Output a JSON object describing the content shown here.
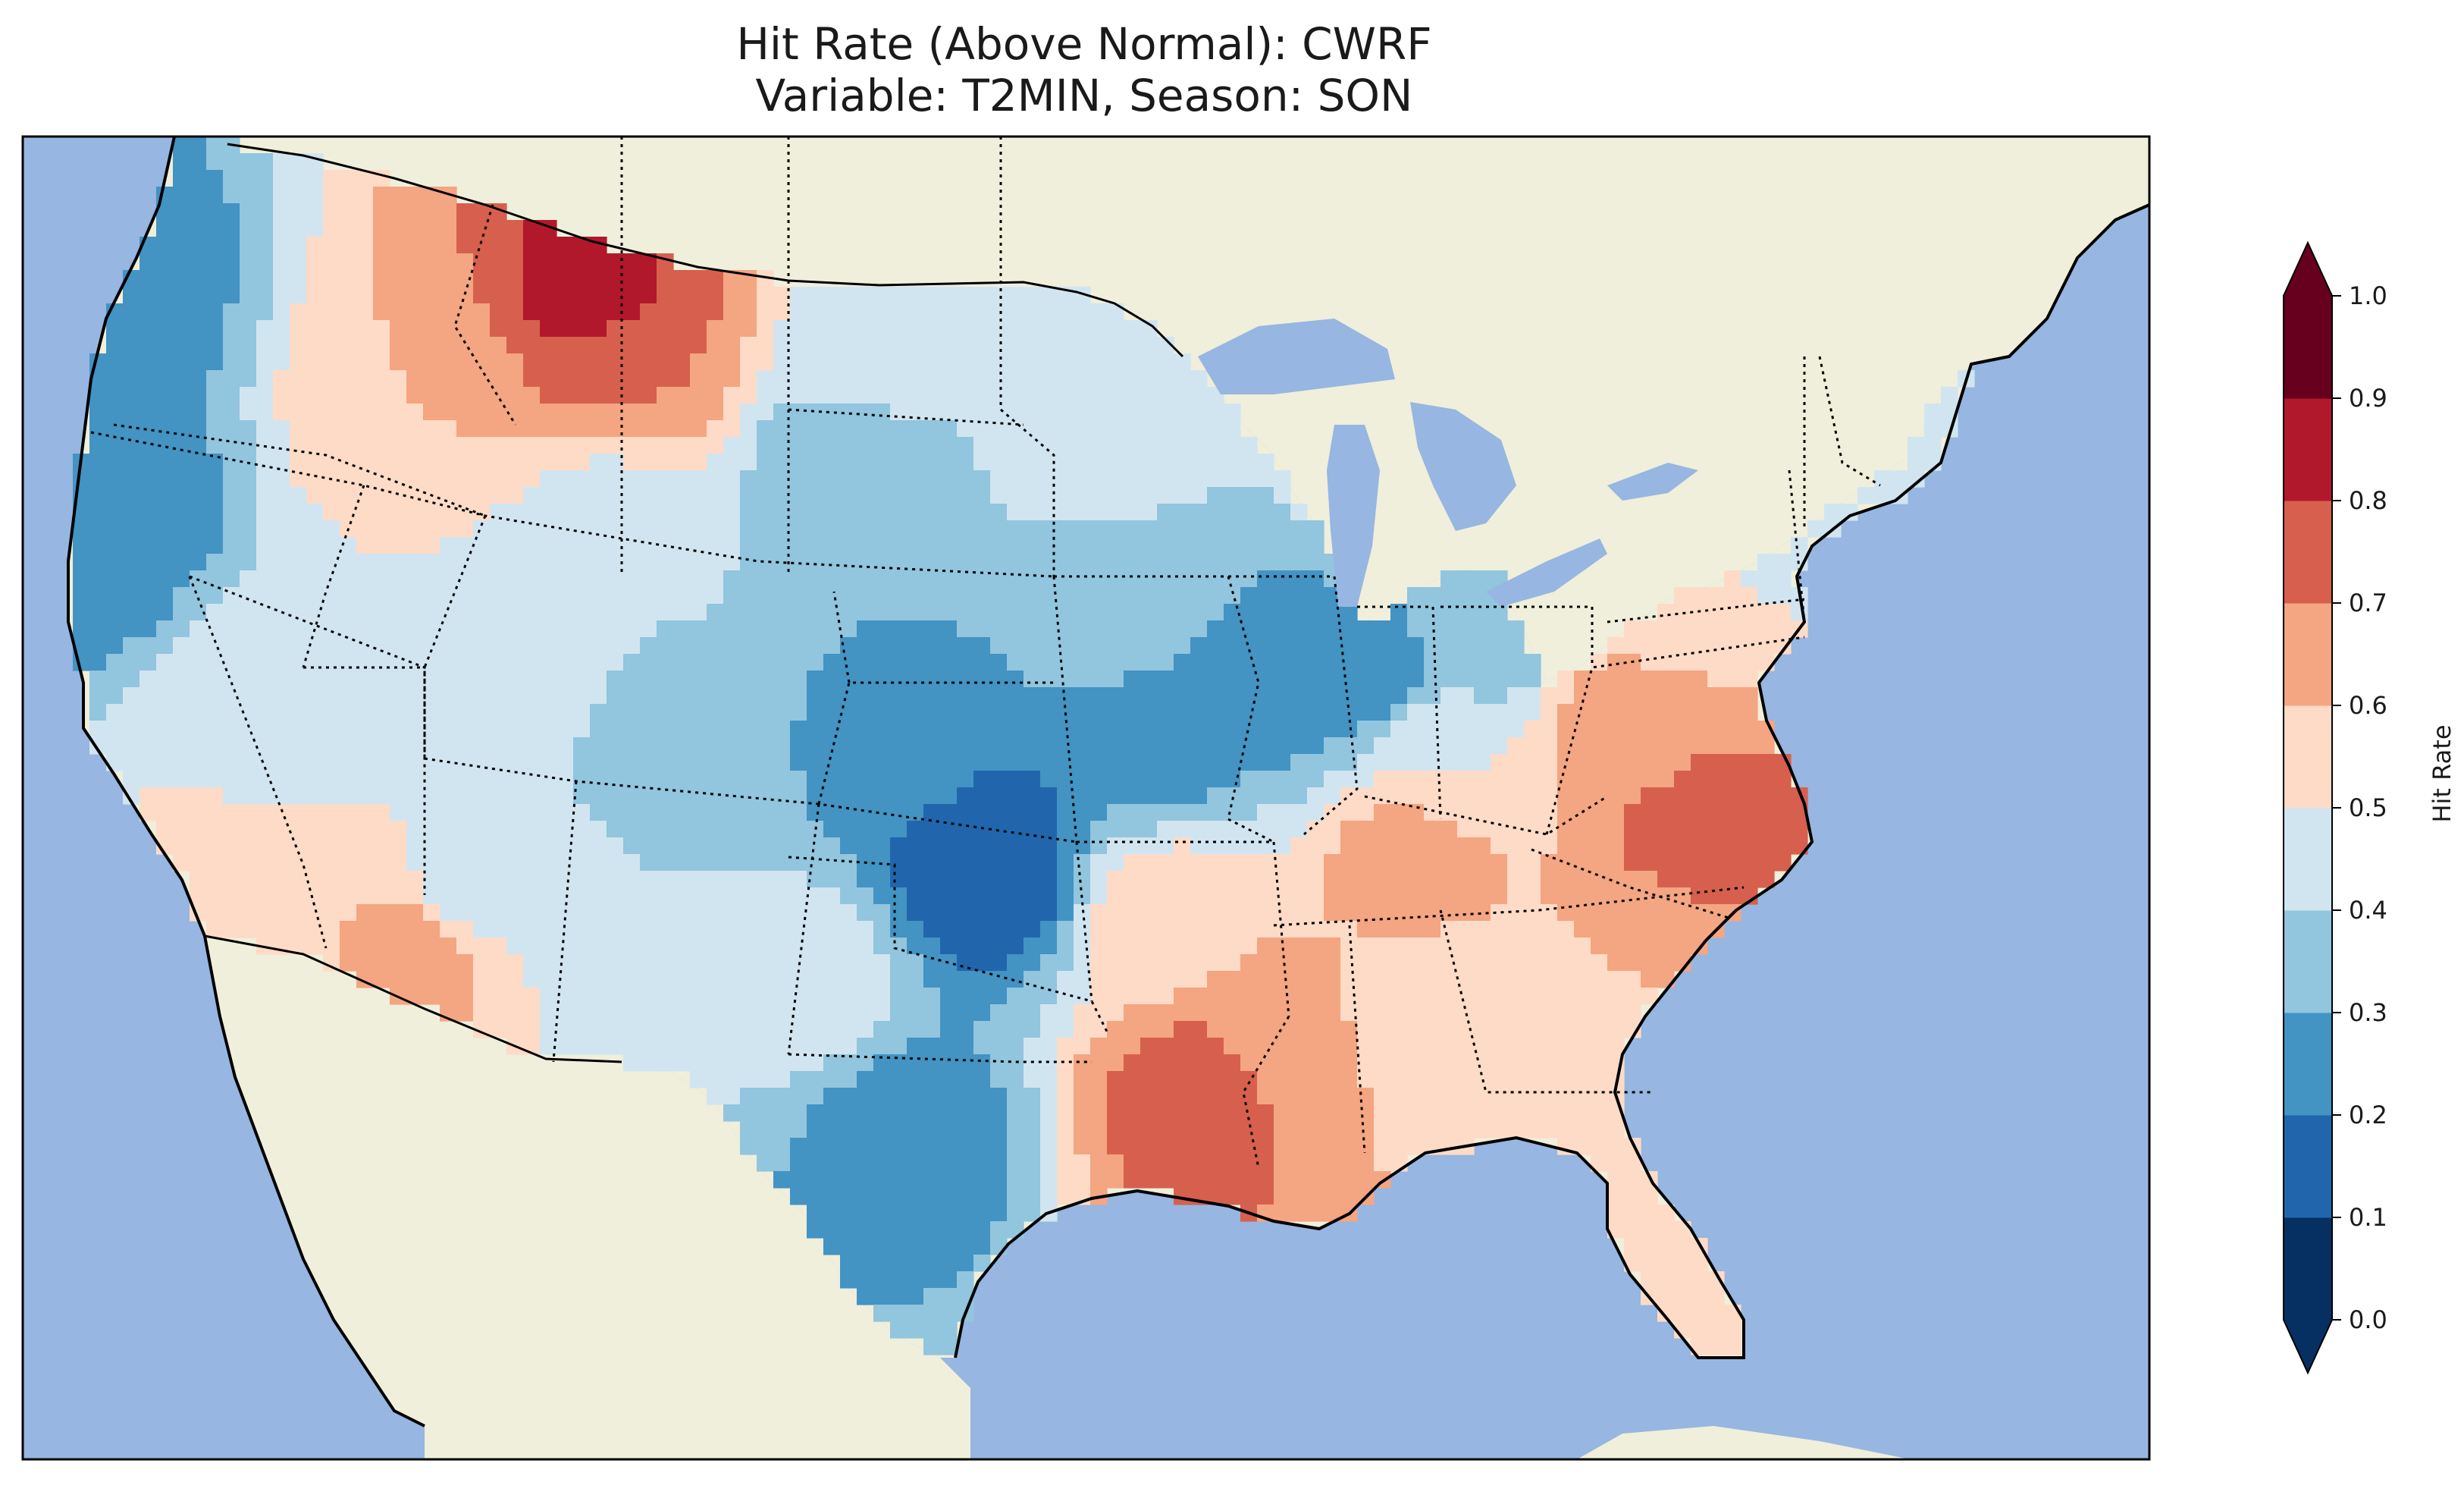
{
  "title": {
    "line1": "Hit Rate (Above Normal): CWRF",
    "line2": "Variable: T2MIN, Season: SON"
  },
  "colorbar": {
    "label": "Hit Rate",
    "ticks": [
      "0.0",
      "0.1",
      "0.2",
      "0.3",
      "0.4",
      "0.5",
      "0.6",
      "0.7",
      "0.8",
      "0.9",
      "1.0"
    ],
    "levels": [
      0,
      0.1,
      0.2,
      0.3,
      0.4,
      0.5,
      0.6,
      0.7,
      0.8,
      0.9,
      1.0
    ],
    "colors": [
      "#053061",
      "#2166ac",
      "#4393c3",
      "#92c5de",
      "#d1e5f0",
      "#fddbc7",
      "#f4a582",
      "#d6604d",
      "#b2182b",
      "#67001f"
    ],
    "extend": "both"
  },
  "map_colors": {
    "ocean": "#97b6e1",
    "land": "#efefdb",
    "coast": "#000000",
    "borders": "#000000"
  },
  "chart_data": {
    "type": "heatmap",
    "title": "Hit Rate (Above Normal): CWRF / Variable: T2MIN, Season: SON",
    "variable": "T2MIN",
    "season": "SON",
    "colorbar_label": "Hit Rate",
    "range": [
      0.0,
      1.0
    ],
    "regional_values": [
      {
        "region": "Pacific Northwest coast",
        "value": 0.25
      },
      {
        "region": "Northern California coast",
        "value": 0.2
      },
      {
        "region": "Montana",
        "value": 0.7
      },
      {
        "region": "Northern Montana peak",
        "value": 0.85
      },
      {
        "region": "Idaho / Western Montana",
        "value": 0.6
      },
      {
        "region": "Nevada",
        "value": 0.45
      },
      {
        "region": "Southern California",
        "value": 0.55
      },
      {
        "region": "Arizona",
        "value": 0.45
      },
      {
        "region": "Southern Arizona",
        "value": 0.65
      },
      {
        "region": "Utah",
        "value": 0.45
      },
      {
        "region": "Colorado",
        "value": 0.35
      },
      {
        "region": "New Mexico",
        "value": 0.4
      },
      {
        "region": "Wyoming",
        "value": 0.45
      },
      {
        "region": "South Dakota",
        "value": 0.3
      },
      {
        "region": "Nebraska",
        "value": 0.3
      },
      {
        "region": "Kansas",
        "value": 0.25
      },
      {
        "region": "Oklahoma",
        "value": 0.1
      },
      {
        "region": "West Texas",
        "value": 0.45
      },
      {
        "region": "Central / South Texas",
        "value": 0.25
      },
      {
        "region": "North Dakota",
        "value": 0.45
      },
      {
        "region": "Minnesota",
        "value": 0.5
      },
      {
        "region": "Iowa",
        "value": 0.35
      },
      {
        "region": "Missouri",
        "value": 0.25
      },
      {
        "region": "Illinois",
        "value": 0.25
      },
      {
        "region": "Indiana",
        "value": 0.25
      },
      {
        "region": "Michigan",
        "value": 0.5
      },
      {
        "region": "Ohio",
        "value": 0.35
      },
      {
        "region": "Pennsylvania / New York",
        "value": 0.5
      },
      {
        "region": "New England",
        "value": 0.4
      },
      {
        "region": "Arkansas",
        "value": 0.55
      },
      {
        "region": "Louisiana",
        "value": 0.75
      },
      {
        "region": "Mississippi",
        "value": 0.65
      },
      {
        "region": "Alabama",
        "value": 0.55
      },
      {
        "region": "Tennessee",
        "value": 0.65
      },
      {
        "region": "Kentucky",
        "value": 0.5
      },
      {
        "region": "Virginia",
        "value": 0.65
      },
      {
        "region": "North Carolina",
        "value": 0.75
      },
      {
        "region": "South Carolina",
        "value": 0.6
      },
      {
        "region": "Georgia",
        "value": 0.55
      },
      {
        "region": "Florida",
        "value": 0.55
      }
    ]
  }
}
